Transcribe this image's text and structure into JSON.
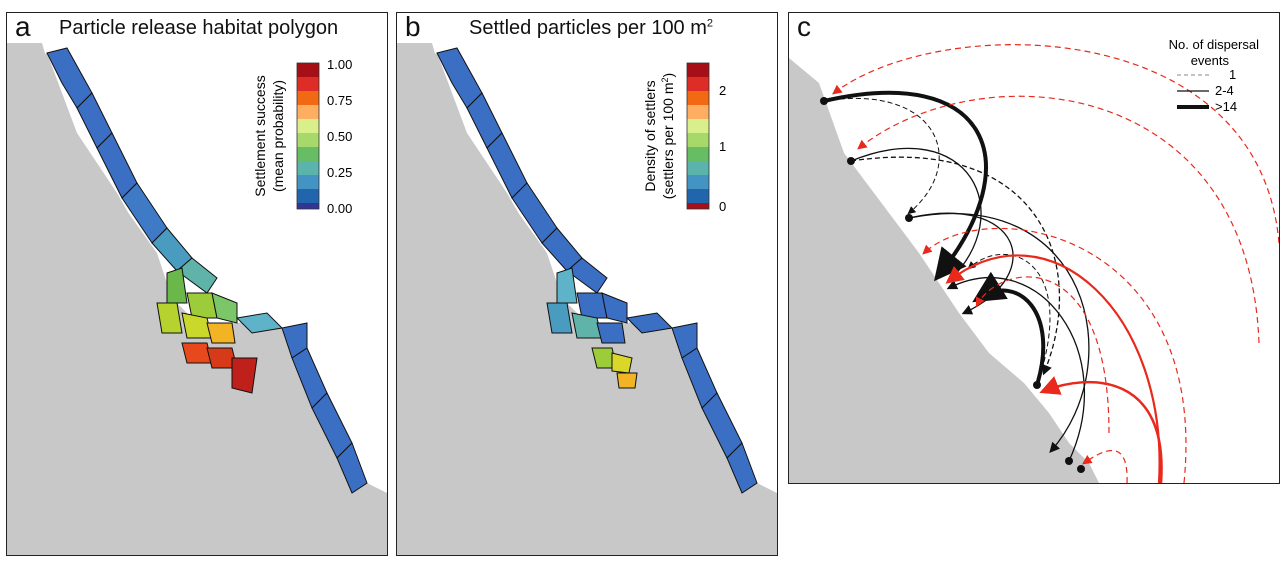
{
  "panel_a": {
    "letter": "a",
    "title": "Particle release habitat polygon",
    "colorbar": {
      "title_line1": "Settlement success",
      "title_line2": "(mean probability)",
      "ticks": [
        "1.00",
        "0.75",
        "0.50",
        "0.25",
        "0.00"
      ]
    }
  },
  "panel_b": {
    "letter": "b",
    "title": "Settled particles per 100 m",
    "title_sup": "2",
    "colorbar": {
      "title_line1": "Density of settlers",
      "title_line2": "(settlers per 100 m",
      "title_sup": "2",
      "title_end": ")",
      "ticks": [
        "2",
        "1",
        "0"
      ]
    }
  },
  "panel_c": {
    "letter": "c",
    "legend": {
      "title_line1": "No. of dispersal",
      "title_line2": "events",
      "items": [
        "1",
        "2-4",
        ">14"
      ]
    }
  },
  "colors": {
    "land": "#c8c8c8",
    "low": "#3b6fc4",
    "high": "#b3121b",
    "red_arrow": "#e8291c",
    "black_arrow": "#111111"
  }
}
